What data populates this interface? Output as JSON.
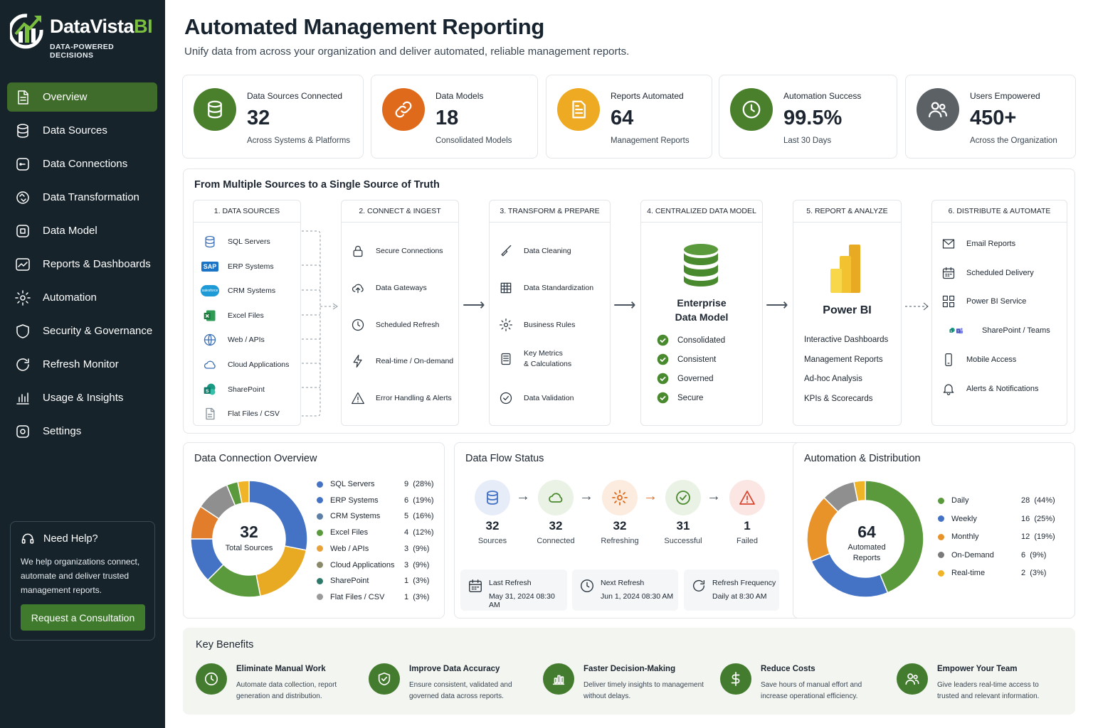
{
  "brand": {
    "name_main": "DataVista",
    "name_accent": "BI",
    "tagline": "DATA-POWERED DECISIONS"
  },
  "sidebar": {
    "items": [
      {
        "label": "Overview",
        "icon": "document-icon",
        "active": true
      },
      {
        "label": "Data Sources",
        "icon": "database-icon"
      },
      {
        "label": "Data Connections",
        "icon": "connection-icon"
      },
      {
        "label": "Data Transformation",
        "icon": "transform-icon"
      },
      {
        "label": "Data Model",
        "icon": "model-icon"
      },
      {
        "label": "Reports & Dashboards",
        "icon": "chart-icon"
      },
      {
        "label": "Automation",
        "icon": "gear-icon"
      },
      {
        "label": "Security & Governance",
        "icon": "shield-icon"
      },
      {
        "label": "Refresh Monitor",
        "icon": "refresh-icon"
      },
      {
        "label": "Usage & Insights",
        "icon": "bars-icon"
      },
      {
        "label": "Settings",
        "icon": "settings-icon"
      }
    ],
    "help": {
      "title": "Need Help?",
      "text": "We help organizations connect, automate and deliver trusted management reports.",
      "button": "Request a Consultation"
    }
  },
  "header": {
    "title": "Automated Management Reporting",
    "subtitle": "Unify data from across your organization and deliver automated, reliable management reports."
  },
  "kpis": [
    {
      "label": "Data Sources Connected",
      "value": "32",
      "sub": "Across Systems & Platforms",
      "color": "#4a7f2c",
      "icon": "database-icon"
    },
    {
      "label": "Data Models",
      "value": "18",
      "sub": "Consolidated Models",
      "color": "#e06a1b",
      "icon": "link-icon"
    },
    {
      "label": "Reports Automated",
      "value": "64",
      "sub": "Management Reports",
      "color": "#edaa22",
      "icon": "report-icon"
    },
    {
      "label": "Automation Success",
      "value": "99.5%",
      "sub": "Last 30 Days",
      "color": "#4a7f2c",
      "icon": "clock-icon"
    },
    {
      "label": "Users Empowered",
      "value": "450+",
      "sub": "Across the Organization",
      "color": "#5c6166",
      "icon": "users-icon"
    }
  ],
  "pipeline": {
    "title": "From Multiple Sources to a Single Source of Truth",
    "stages": [
      {
        "head": "1. DATA SOURCES",
        "items": [
          "SQL Servers",
          "ERP Systems",
          "CRM Systems",
          "Excel Files",
          "Web / APIs",
          "Cloud Applications",
          "SharePoint",
          "Flat Files / CSV"
        ]
      },
      {
        "head": "2. CONNECT & INGEST",
        "items": [
          "Secure Connections",
          "Data Gateways",
          "Scheduled Refresh",
          "Real-time / On-demand",
          "Error Handling & Alerts"
        ]
      },
      {
        "head": "3. TRANSFORM & PREPARE",
        "items": [
          "Data Cleaning",
          "Data Standardization",
          "Business Rules",
          "Key Metrics\n& Calculations",
          "Data Validation"
        ]
      },
      {
        "head": "4. CENTRALIZED DATA MODEL",
        "model_title_1": "Enterprise",
        "model_title_2": "Data Model",
        "items": [
          "Consolidated",
          "Consistent",
          "Governed",
          "Secure"
        ]
      },
      {
        "head": "5. REPORT & ANALYZE",
        "product": "Power BI",
        "items": [
          "Interactive Dashboards",
          "Management Reports",
          "Ad-hoc Analysis",
          "KPIs & Scorecards"
        ]
      },
      {
        "head": "6. DISTRIBUTE & AUTOMATE",
        "items": [
          "Email Reports",
          "Scheduled Delivery",
          "Power BI Service",
          "SharePoint / Teams",
          "Mobile Access",
          "Alerts & Notifications"
        ]
      }
    ],
    "sap_badge": "SAP",
    "sf_badge": "salesforce"
  },
  "connections": {
    "title": "Data Connection Overview",
    "center_value": "32",
    "center_label": "Total Sources",
    "legend": [
      {
        "name": "SQL Servers",
        "count": "9",
        "pct": "(28%)",
        "color": "#4472c4"
      },
      {
        "name": "ERP Systems",
        "count": "6",
        "pct": "(19%)",
        "color": "#4472c4"
      },
      {
        "name": "CRM Systems",
        "count": "5",
        "pct": "(16%)",
        "color": "#5b7fa6"
      },
      {
        "name": "Excel Files",
        "count": "4",
        "pct": "(12%)",
        "color": "#5a9a3c"
      },
      {
        "name": "Web / APIs",
        "count": "3",
        "pct": "(9%)",
        "color": "#e8a23a"
      },
      {
        "name": "Cloud Applications",
        "count": "3",
        "pct": "(9%)",
        "color": "#8a8a6a"
      },
      {
        "name": "SharePoint",
        "count": "1",
        "pct": "(3%)",
        "color": "#2d7a6a"
      },
      {
        "name": "Flat Files / CSV",
        "count": "1",
        "pct": "(3%)",
        "color": "#9a9a9a"
      }
    ]
  },
  "chart_data": [
    {
      "type": "pie",
      "title": "Data Connection Overview",
      "categories": [
        "SQL Servers",
        "ERP Systems",
        "CRM Systems",
        "Excel Files",
        "Web / APIs",
        "Cloud Applications",
        "SharePoint",
        "Flat Files / CSV"
      ],
      "values": [
        9,
        6,
        5,
        4,
        3,
        3,
        1,
        1
      ],
      "slice_colors": [
        "#4472c4",
        "#e8a923",
        "#5a9a3c",
        "#4472c4",
        "#e27e2b",
        "#8f8f8f",
        "#5a9a3c",
        "#f0b429"
      ]
    },
    {
      "type": "pie",
      "title": "Automation & Distribution",
      "categories": [
        "Daily",
        "Weekly",
        "Monthly",
        "On-Demand",
        "Real-time"
      ],
      "values": [
        28,
        16,
        12,
        6,
        2
      ],
      "slice_colors": [
        "#5a9a3c",
        "#4472c4",
        "#e8922a",
        "#8f8f8f",
        "#f0b429"
      ]
    }
  ],
  "flow": {
    "title": "Data Flow Status",
    "nodes": [
      {
        "value": "32",
        "label": "Sources",
        "bg": "#e7edf8",
        "color": "#4472c4",
        "icon": "database-icon"
      },
      {
        "value": "32",
        "label": "Connected",
        "bg": "#e9f2e4",
        "color": "#4a8a2e",
        "icon": "cloud-icon"
      },
      {
        "value": "32",
        "label": "Refreshing",
        "bg": "#fcebdf",
        "color": "#e06a1b",
        "icon": "gear-icon"
      },
      {
        "value": "31",
        "label": "Successful",
        "bg": "#e9f2e4",
        "color": "#4a8a2e",
        "icon": "check-icon"
      },
      {
        "value": "1",
        "label": "Failed",
        "bg": "#fbe6e3",
        "color": "#d9452f",
        "icon": "warning-icon"
      }
    ],
    "info": [
      {
        "t1": "Last Refresh",
        "t2": "May 31, 2024 08:30 AM",
        "icon": "calendar-icon"
      },
      {
        "t1": "Next Refresh",
        "t2": "Jun 1, 2024 08:30 AM",
        "icon": "clock-icon"
      },
      {
        "t1": "Refresh Frequency",
        "t2": "Daily at 8:30 AM",
        "icon": "refresh-icon"
      }
    ]
  },
  "automation": {
    "title": "Automation & Distribution",
    "center_value": "64",
    "center_label_1": "Automated",
    "center_label_2": "Reports",
    "legend": [
      {
        "name": "Daily",
        "count": "28",
        "pct": "(44%)",
        "color": "#5a9a3c"
      },
      {
        "name": "Weekly",
        "count": "16",
        "pct": "(25%)",
        "color": "#4472c4"
      },
      {
        "name": "Monthly",
        "count": "12",
        "pct": "(19%)",
        "color": "#e8922a"
      },
      {
        "name": "On-Demand",
        "count": "6",
        "pct": "(9%)",
        "color": "#7a7a7a"
      },
      {
        "name": "Real-time",
        "count": "2",
        "pct": "(3%)",
        "color": "#f0b429"
      }
    ]
  },
  "benefits": {
    "title": "Key Benefits",
    "items": [
      {
        "title": "Eliminate Manual Work",
        "desc": "Automate data collection, report generation and distribution.",
        "icon": "clock-icon"
      },
      {
        "title": "Improve Data Accuracy",
        "desc": "Ensure consistent, validated and governed data across reports.",
        "icon": "shield-check-icon"
      },
      {
        "title": "Faster Decision-Making",
        "desc": "Deliver timely insights to management without delays.",
        "icon": "bar-chart-icon"
      },
      {
        "title": "Reduce Costs",
        "desc": "Save hours of manual effort and increase operational efficiency.",
        "icon": "dollar-icon"
      },
      {
        "title": "Empower Your Team",
        "desc": "Give leaders real-time access to trusted and relevant information.",
        "icon": "users-icon"
      }
    ]
  }
}
